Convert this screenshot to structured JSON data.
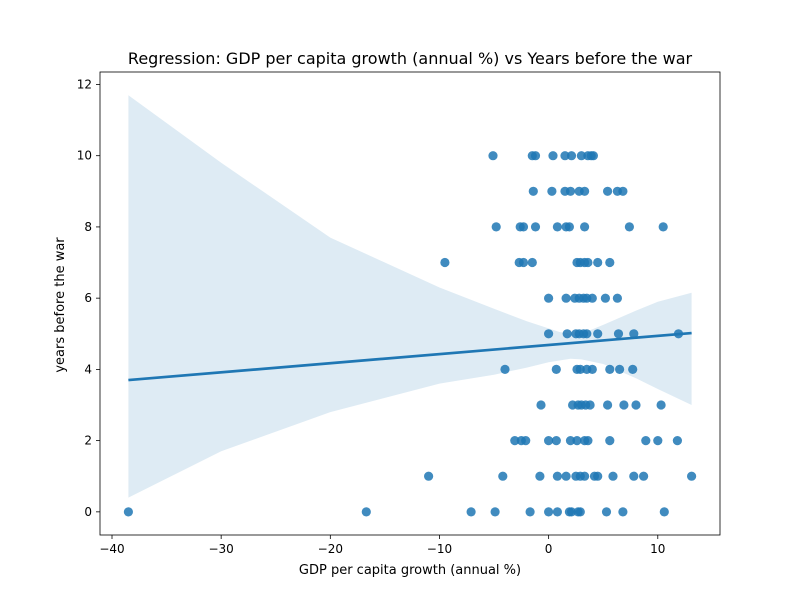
{
  "chart_data": {
    "type": "scatter",
    "title": "Regression: GDP per capita growth (annual %) vs Years before the war",
    "xlabel": "GDP per capita growth (annual %)",
    "ylabel": "years before the war",
    "xlim": [
      -41.1,
      15.7
    ],
    "ylim": [
      -0.65,
      12.35
    ],
    "xticks": [
      -40,
      -30,
      -20,
      -10,
      0,
      10
    ],
    "xtick_labels": [
      "−40",
      "−30",
      "−20",
      "−10",
      "0",
      "10"
    ],
    "yticks": [
      0,
      2,
      4,
      6,
      8,
      10,
      12
    ],
    "ytick_labels": [
      "0",
      "2",
      "4",
      "6",
      "8",
      "10",
      "12"
    ],
    "grid": false,
    "colors": {
      "points": "#1f77b4",
      "line": "#1f77b4",
      "band": "#1f77b4"
    },
    "regression": {
      "x": [
        -38.5,
        13.1
      ],
      "y": [
        3.7,
        5.02
      ]
    },
    "confidence_band": {
      "x": [
        -38.5,
        -30,
        -20,
        -10,
        -5,
        -2,
        0,
        1,
        2,
        3,
        5,
        8,
        10,
        13.1
      ],
      "upper": [
        11.7,
        9.8,
        7.7,
        6.3,
        5.7,
        5.35,
        5.15,
        5.05,
        5.0,
        5.0,
        5.25,
        5.65,
        5.9,
        6.15
      ],
      "lower": [
        0.4,
        1.7,
        2.8,
        3.6,
        3.85,
        4.05,
        4.2,
        4.25,
        4.3,
        4.28,
        4.15,
        3.75,
        3.45,
        3.0
      ]
    },
    "points": [
      {
        "x": -38.5,
        "y": 0
      },
      {
        "x": -16.7,
        "y": 0
      },
      {
        "x": -7.1,
        "y": 0
      },
      {
        "x": -4.9,
        "y": 0
      },
      {
        "x": -1.7,
        "y": 0
      },
      {
        "x": 0.0,
        "y": 0
      },
      {
        "x": 0.8,
        "y": 0
      },
      {
        "x": 1.9,
        "y": 0
      },
      {
        "x": 2.1,
        "y": 0
      },
      {
        "x": 2.7,
        "y": 0
      },
      {
        "x": 2.9,
        "y": 0
      },
      {
        "x": 5.3,
        "y": 0
      },
      {
        "x": 6.8,
        "y": 0
      },
      {
        "x": 10.6,
        "y": 0
      },
      {
        "x": -11.0,
        "y": 1
      },
      {
        "x": -4.2,
        "y": 1
      },
      {
        "x": -0.8,
        "y": 1
      },
      {
        "x": 0.8,
        "y": 1
      },
      {
        "x": 1.6,
        "y": 1
      },
      {
        "x": 2.5,
        "y": 1
      },
      {
        "x": 2.9,
        "y": 1
      },
      {
        "x": 3.3,
        "y": 1
      },
      {
        "x": 4.2,
        "y": 1
      },
      {
        "x": 4.5,
        "y": 1
      },
      {
        "x": 5.9,
        "y": 1
      },
      {
        "x": 7.8,
        "y": 1
      },
      {
        "x": 8.7,
        "y": 1
      },
      {
        "x": 13.1,
        "y": 1
      },
      {
        "x": -3.1,
        "y": 2
      },
      {
        "x": -2.5,
        "y": 2
      },
      {
        "x": -2.1,
        "y": 2
      },
      {
        "x": 0.0,
        "y": 2
      },
      {
        "x": 0.7,
        "y": 2
      },
      {
        "x": 2.0,
        "y": 2
      },
      {
        "x": 2.6,
        "y": 2
      },
      {
        "x": 3.3,
        "y": 2
      },
      {
        "x": 3.6,
        "y": 2
      },
      {
        "x": 5.6,
        "y": 2
      },
      {
        "x": 8.9,
        "y": 2
      },
      {
        "x": 10.0,
        "y": 2
      },
      {
        "x": 11.8,
        "y": 2
      },
      {
        "x": -0.7,
        "y": 3
      },
      {
        "x": 2.2,
        "y": 3
      },
      {
        "x": 2.7,
        "y": 3
      },
      {
        "x": 3.0,
        "y": 3
      },
      {
        "x": 3.4,
        "y": 3
      },
      {
        "x": 3.8,
        "y": 3
      },
      {
        "x": 5.4,
        "y": 3
      },
      {
        "x": 6.9,
        "y": 3
      },
      {
        "x": 8.0,
        "y": 3
      },
      {
        "x": 10.3,
        "y": 3
      },
      {
        "x": -4.0,
        "y": 4
      },
      {
        "x": 0.7,
        "y": 4
      },
      {
        "x": 2.6,
        "y": 4
      },
      {
        "x": 2.9,
        "y": 4
      },
      {
        "x": 3.5,
        "y": 4
      },
      {
        "x": 4.0,
        "y": 4
      },
      {
        "x": 5.6,
        "y": 4
      },
      {
        "x": 6.5,
        "y": 4
      },
      {
        "x": 7.7,
        "y": 4
      },
      {
        "x": 0.0,
        "y": 5
      },
      {
        "x": 1.7,
        "y": 5
      },
      {
        "x": 2.5,
        "y": 5
      },
      {
        "x": 2.8,
        "y": 5
      },
      {
        "x": 3.2,
        "y": 5
      },
      {
        "x": 3.5,
        "y": 5
      },
      {
        "x": 4.5,
        "y": 5
      },
      {
        "x": 6.4,
        "y": 5
      },
      {
        "x": 7.8,
        "y": 5
      },
      {
        "x": 11.9,
        "y": 5
      },
      {
        "x": 0.0,
        "y": 6
      },
      {
        "x": 1.6,
        "y": 6
      },
      {
        "x": 2.4,
        "y": 6
      },
      {
        "x": 2.8,
        "y": 6
      },
      {
        "x": 3.2,
        "y": 6
      },
      {
        "x": 3.5,
        "y": 6
      },
      {
        "x": 4.0,
        "y": 6
      },
      {
        "x": 5.2,
        "y": 6
      },
      {
        "x": 6.3,
        "y": 6
      },
      {
        "x": -9.5,
        "y": 7
      },
      {
        "x": -2.7,
        "y": 7
      },
      {
        "x": -2.3,
        "y": 7
      },
      {
        "x": -1.5,
        "y": 7
      },
      {
        "x": 2.6,
        "y": 7
      },
      {
        "x": 2.9,
        "y": 7
      },
      {
        "x": 3.3,
        "y": 7
      },
      {
        "x": 3.6,
        "y": 7
      },
      {
        "x": 4.5,
        "y": 7
      },
      {
        "x": 5.6,
        "y": 7
      },
      {
        "x": -4.8,
        "y": 8
      },
      {
        "x": -2.6,
        "y": 8
      },
      {
        "x": -2.3,
        "y": 8
      },
      {
        "x": -1.2,
        "y": 8
      },
      {
        "x": 0.8,
        "y": 8
      },
      {
        "x": 1.6,
        "y": 8
      },
      {
        "x": 1.9,
        "y": 8
      },
      {
        "x": 3.3,
        "y": 8
      },
      {
        "x": 7.4,
        "y": 8
      },
      {
        "x": 10.5,
        "y": 8
      },
      {
        "x": -1.4,
        "y": 9
      },
      {
        "x": 0.3,
        "y": 9
      },
      {
        "x": 1.5,
        "y": 9
      },
      {
        "x": 2.0,
        "y": 9
      },
      {
        "x": 2.8,
        "y": 9
      },
      {
        "x": 3.3,
        "y": 9
      },
      {
        "x": 5.4,
        "y": 9
      },
      {
        "x": 6.3,
        "y": 9
      },
      {
        "x": 6.8,
        "y": 9
      },
      {
        "x": -5.1,
        "y": 10
      },
      {
        "x": -1.5,
        "y": 10
      },
      {
        "x": -1.2,
        "y": 10
      },
      {
        "x": 0.4,
        "y": 10
      },
      {
        "x": 1.5,
        "y": 10
      },
      {
        "x": 2.1,
        "y": 10
      },
      {
        "x": 3.0,
        "y": 10
      },
      {
        "x": 3.6,
        "y": 10
      },
      {
        "x": 3.9,
        "y": 10
      },
      {
        "x": 4.1,
        "y": 10
      }
    ]
  }
}
